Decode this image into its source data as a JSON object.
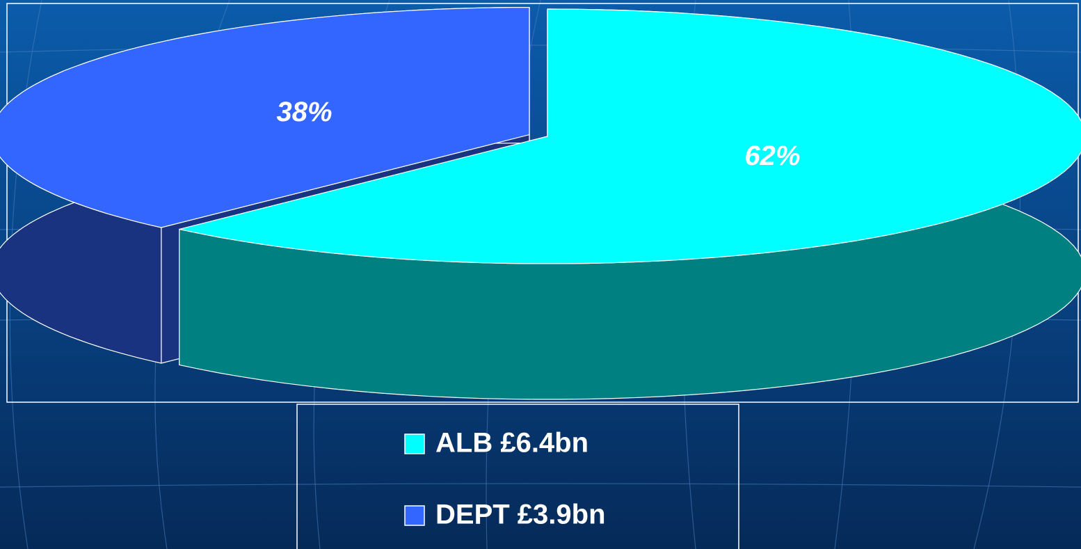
{
  "chart_data": {
    "type": "pie",
    "categories": [
      "ALB £6.4bn",
      "DEPT £3.9bn"
    ],
    "values": [
      62,
      38
    ],
    "value_labels": [
      "62%",
      "38%"
    ],
    "colors": [
      "#00ffff",
      "#3366ff"
    ],
    "start_angle": 0,
    "direction": "clockwise",
    "legend": "bottom"
  }
}
